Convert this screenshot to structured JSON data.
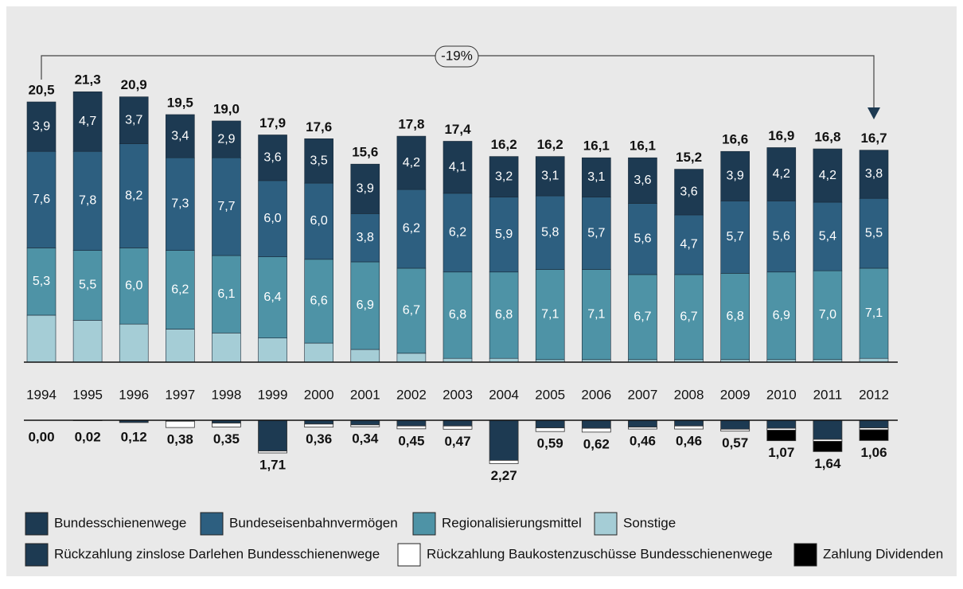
{
  "chart_data": {
    "type": "stacked_bar",
    "annotation": "-19%",
    "categories": [
      "1994",
      "1995",
      "1996",
      "1997",
      "1998",
      "1999",
      "2000",
      "2001",
      "2002",
      "2003",
      "2004",
      "2005",
      "2006",
      "2007",
      "2008",
      "2009",
      "2010",
      "2011",
      "2012"
    ],
    "totals": [
      20.5,
      21.3,
      20.9,
      19.5,
      19.0,
      17.9,
      17.6,
      15.6,
      17.8,
      17.4,
      16.2,
      16.2,
      16.1,
      16.1,
      15.2,
      16.6,
      16.9,
      16.8,
      16.7
    ],
    "totals_labels": [
      "20,5",
      "21,3",
      "20,9",
      "19,5",
      "19,0",
      "17,9",
      "17,6",
      "15,6",
      "17,8",
      "17,4",
      "16,2",
      "16,2",
      "16,1",
      "16,1",
      "15,2",
      "16,6",
      "16,9",
      "16,8",
      "16,7"
    ],
    "series": [
      {
        "name": "Sonstige",
        "color": "#a5cdd6",
        "values": [
          3.7,
          3.3,
          3.0,
          2.6,
          2.3,
          1.9,
          1.5,
          1.0,
          0.7,
          0.3,
          0.3,
          0.2,
          0.2,
          0.2,
          0.2,
          0.2,
          0.2,
          0.2,
          0.3
        ]
      },
      {
        "name": "Regionalisierungsmittel",
        "color": "#4e93a6",
        "values": [
          5.3,
          5.5,
          6.0,
          6.2,
          6.1,
          6.4,
          6.6,
          6.9,
          6.7,
          6.8,
          6.8,
          7.1,
          7.1,
          6.7,
          6.7,
          6.8,
          6.9,
          7.0,
          7.1
        ],
        "value_labels": [
          "5,3",
          "5,5",
          "6,0",
          "6,2",
          "6,1",
          "6,4",
          "6,6",
          "6,9",
          "6,7",
          "6,8",
          "6,8",
          "7,1",
          "7,1",
          "6,7",
          "6,7",
          "6,8",
          "6,9",
          "7,0",
          "7,1"
        ]
      },
      {
        "name": "Bundeseisenbahnvermögen",
        "color": "#2d5f80",
        "values": [
          7.6,
          7.8,
          8.2,
          7.3,
          7.7,
          6.0,
          6.0,
          3.8,
          6.2,
          6.2,
          5.9,
          5.8,
          5.7,
          5.6,
          4.7,
          5.7,
          5.6,
          5.4,
          5.5
        ],
        "value_labels": [
          "7,6",
          "7,8",
          "8,2",
          "7,3",
          "7,7",
          "6,0",
          "6,0",
          "3,8",
          "6,2",
          "6,2",
          "5,9",
          "5,8",
          "5,7",
          "5,6",
          "4,7",
          "5,7",
          "5,6",
          "5,4",
          "5,5"
        ]
      },
      {
        "name": "Bundesschienenwege",
        "color": "#1d3a52",
        "values": [
          3.9,
          4.7,
          3.7,
          3.4,
          2.9,
          3.6,
          3.5,
          3.9,
          4.2,
          4.1,
          3.2,
          3.1,
          3.1,
          3.6,
          3.6,
          3.9,
          4.2,
          4.2,
          3.8
        ],
        "value_labels": [
          "3,9",
          "4,7",
          "3,7",
          "3,4",
          "2,9",
          "3,6",
          "3,5",
          "3,9",
          "4,2",
          "4,1",
          "3,2",
          "3,1",
          "3,1",
          "3,6",
          "3,6",
          "3,9",
          "4,2",
          "4,2",
          "3,8"
        ]
      }
    ],
    "deductions_totals": [
      0.0,
      0.02,
      0.12,
      0.38,
      0.35,
      1.71,
      0.36,
      0.34,
      0.45,
      0.47,
      2.27,
      0.59,
      0.62,
      0.46,
      0.46,
      0.57,
      1.07,
      1.64,
      1.06
    ],
    "deductions_totals_labels": [
      "0,00",
      "0,02",
      "0,12",
      "0,38",
      "0,35",
      "1,71",
      "0,36",
      "0,34",
      "0,45",
      "0,47",
      "2,27",
      "0,59",
      "0,62",
      "0,46",
      "0,46",
      "0,57",
      "1,07",
      "1,64",
      "1,06"
    ],
    "deductions_series": [
      {
        "name": "Rückzahlung zinslose Darlehen Bundesschienenwege",
        "color": "#1d3a52",
        "values": [
          0,
          0.02,
          0.12,
          0.05,
          0.15,
          1.61,
          0.2,
          0.24,
          0.3,
          0.3,
          2.1,
          0.4,
          0.42,
          0.36,
          0.3,
          0.47,
          0.42,
          1.0,
          0.4
        ]
      },
      {
        "name": "Rückzahlung Baukostenzuschüsse Bundesschienenwege",
        "color": "#ffffff",
        "values": [
          0,
          0,
          0,
          0.33,
          0.2,
          0.1,
          0.16,
          0.1,
          0.15,
          0.17,
          0.17,
          0.19,
          0.2,
          0.1,
          0.16,
          0.1,
          0.1,
          0.1,
          0.1
        ]
      },
      {
        "name": "Zahlung Dividenden",
        "color": "#000000",
        "values": [
          0,
          0,
          0,
          0,
          0,
          0,
          0,
          0,
          0,
          0,
          0,
          0,
          0,
          0,
          0,
          0,
          0.55,
          0.54,
          0.56
        ]
      }
    ]
  }
}
